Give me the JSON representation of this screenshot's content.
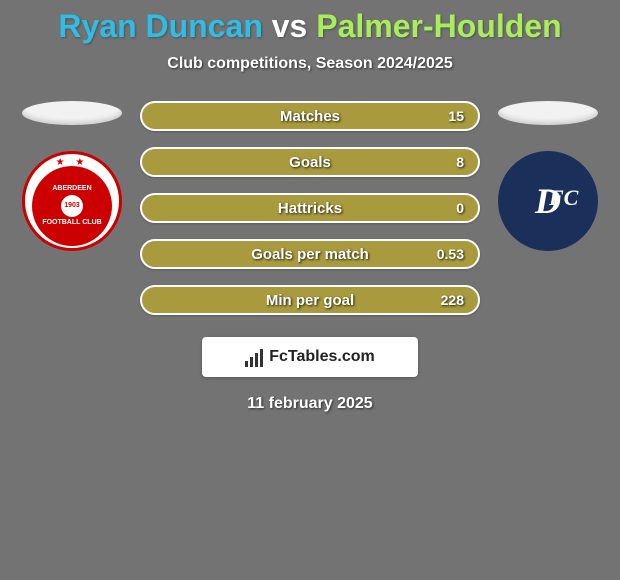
{
  "background_color": "#737373",
  "title": {
    "p1": "Ryan Duncan",
    "sep": "vs",
    "p2": "Palmer-Houlden"
  },
  "title_colors": {
    "p1": "#2fbde6",
    "sep": "#ffffff",
    "p2": "#a8ed5a"
  },
  "subtitle": "Club competitions, Season 2024/2025",
  "bar": {
    "base_color": "#a89a3d",
    "border_color": "#ffffff",
    "height": 30
  },
  "stats": [
    {
      "label": "Matches",
      "right_val": "15",
      "left_pct": 0,
      "right_pct": 0
    },
    {
      "label": "Goals",
      "right_val": "8",
      "left_pct": 0,
      "right_pct": 0
    },
    {
      "label": "Hattricks",
      "right_val": "0",
      "left_pct": 0,
      "right_pct": 0
    },
    {
      "label": "Goals per match",
      "right_val": "0.53",
      "left_pct": 0,
      "right_pct": 0
    },
    {
      "label": "Min per goal",
      "right_val": "228",
      "left_pct": 0,
      "right_pct": 0
    }
  ],
  "left_club": {
    "name": "Aberdeen FC",
    "text_top": "ABERDEEN",
    "year": "1903",
    "text_bot": "FOOTBALL CLUB",
    "primary": "#cc0000"
  },
  "right_club": {
    "name": "Dundee FC",
    "monogram": "DFC",
    "primary": "#1a2f5a"
  },
  "brand": {
    "text": "FcTables.com"
  },
  "date": "11 february 2025",
  "oval_color": "#f2f2f2"
}
